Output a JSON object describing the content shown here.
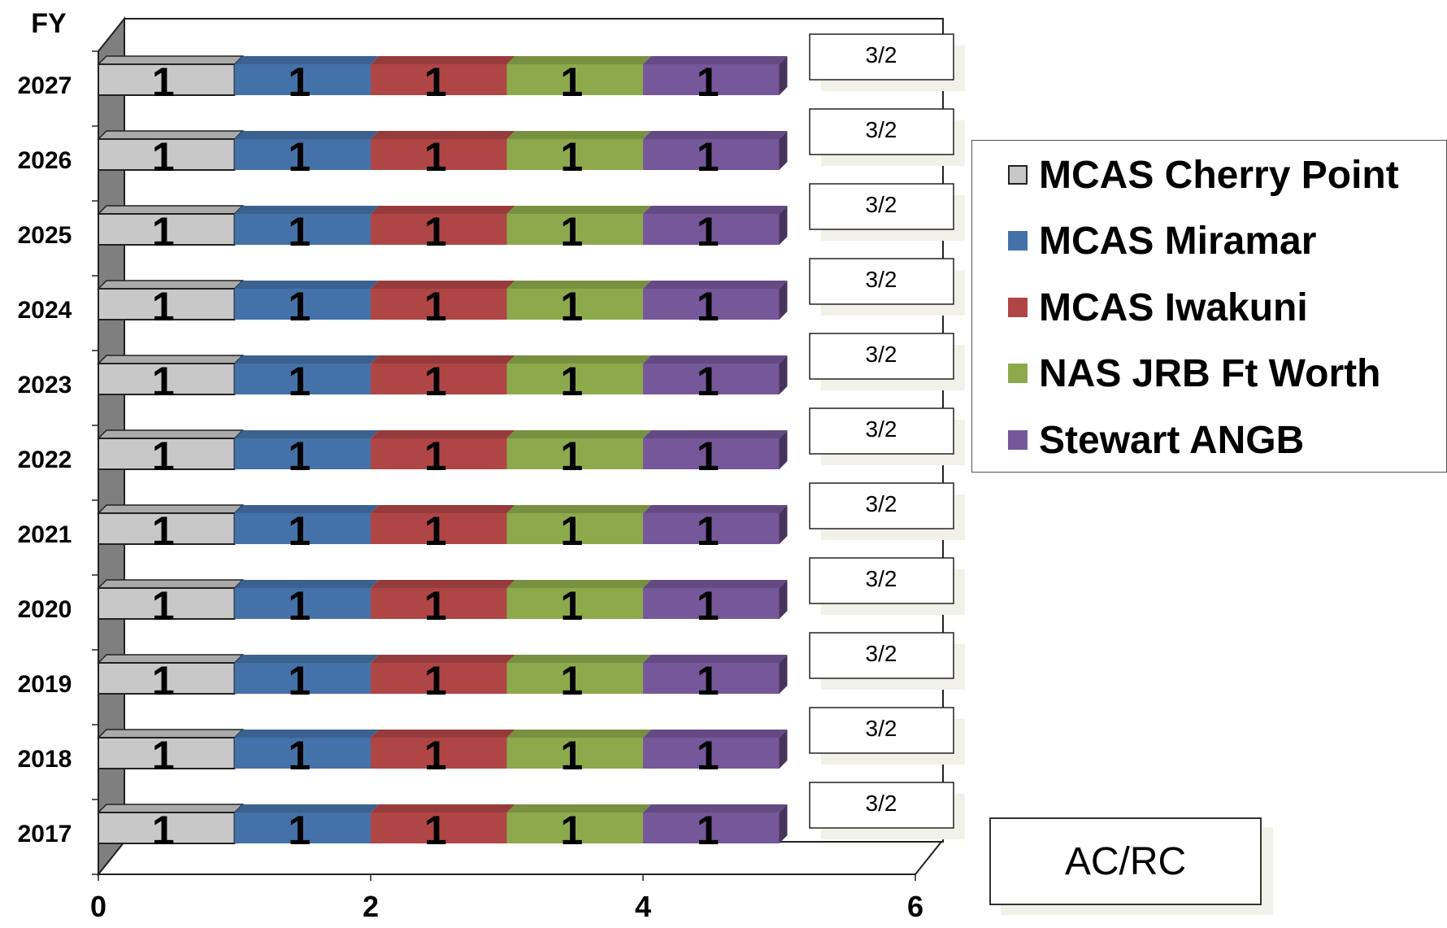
{
  "chart_data": {
    "type": "bar",
    "orientation": "horizontal",
    "stacked": true,
    "three_d": true,
    "ylabel": "FY",
    "xlabel": "",
    "xlim": [
      0,
      6
    ],
    "xticks": [
      0,
      2,
      4,
      6
    ],
    "categories": [
      "2027",
      "2026",
      "2025",
      "2024",
      "2023",
      "2022",
      "2021",
      "2020",
      "2019",
      "2018",
      "2017"
    ],
    "series": [
      {
        "name": "MCAS Cherry Point",
        "color": "#c8c8c8",
        "values": [
          1,
          1,
          1,
          1,
          1,
          1,
          1,
          1,
          1,
          1,
          1
        ]
      },
      {
        "name": "MCAS Miramar",
        "color": "#4472a8",
        "values": [
          1,
          1,
          1,
          1,
          1,
          1,
          1,
          1,
          1,
          1,
          1
        ]
      },
      {
        "name": "MCAS Iwakuni",
        "color": "#b04545",
        "values": [
          1,
          1,
          1,
          1,
          1,
          1,
          1,
          1,
          1,
          1,
          1
        ]
      },
      {
        "name": "NAS JRB Ft Worth",
        "color": "#8caa4c",
        "values": [
          1,
          1,
          1,
          1,
          1,
          1,
          1,
          1,
          1,
          1,
          1
        ]
      },
      {
        "name": "Stewart ANGB",
        "color": "#76579a",
        "values": [
          1,
          1,
          1,
          1,
          1,
          1,
          1,
          1,
          1,
          1,
          1
        ]
      }
    ],
    "annotations": [
      "3/2",
      "3/2",
      "3/2",
      "3/2",
      "3/2",
      "3/2",
      "3/2",
      "3/2",
      "3/2",
      "3/2",
      "3/2"
    ],
    "legend_position": "right",
    "grid": false
  },
  "legend": {
    "items": [
      "MCAS Cherry Point",
      "MCAS Miramar",
      "MCAS Iwakuni",
      "NAS JRB Ft Worth",
      "Stewart ANGB"
    ]
  },
  "acrc_label": "AC/RC"
}
